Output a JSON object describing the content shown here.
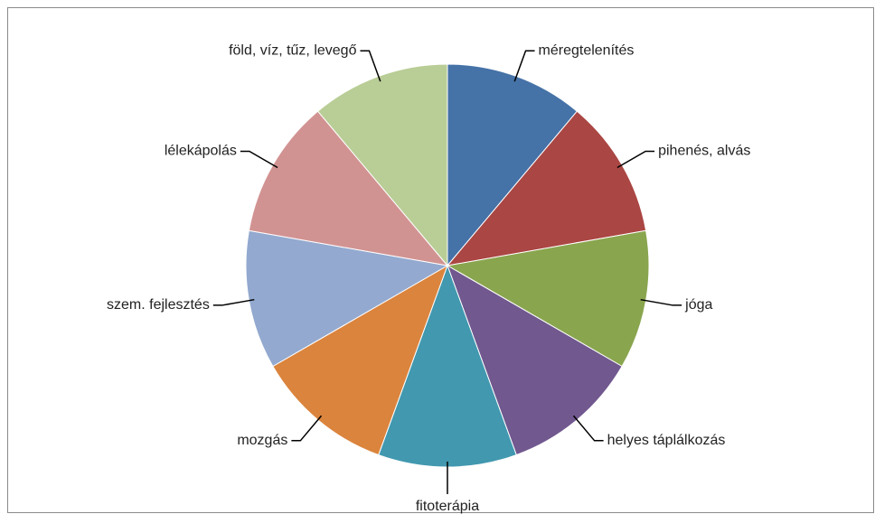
{
  "chart_data": {
    "type": "pie",
    "categories": [
      "méregtelenítés",
      "pihenés, alvás",
      "jóga",
      "helyes táplálkozás",
      "fitoterápia",
      "mozgás",
      "szem. fejlesztés",
      "lélekápolás",
      "föld, víz, tűz, levegő"
    ],
    "values": [
      1,
      1,
      1,
      1,
      1,
      1,
      1,
      1,
      1
    ],
    "colors": [
      "#4572a7",
      "#aa4643",
      "#89a54e",
      "#71588f",
      "#4198af",
      "#db843d",
      "#93a9cf",
      "#d19392",
      "#b9cd96"
    ]
  }
}
